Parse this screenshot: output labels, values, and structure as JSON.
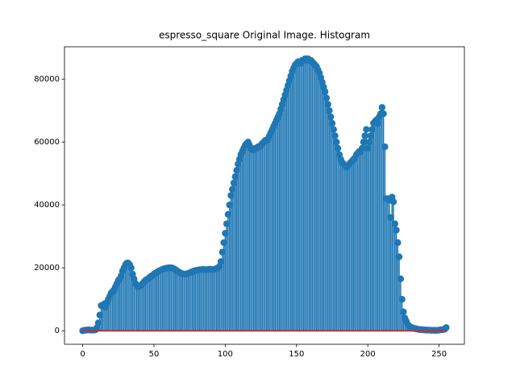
{
  "chart_data": {
    "type": "stem",
    "title": "espresso_square Original Image. Histogram",
    "x": [
      0,
      1,
      2,
      3,
      4,
      5,
      6,
      7,
      8,
      9,
      10,
      11,
      12,
      13,
      14,
      15,
      16,
      17,
      18,
      19,
      20,
      21,
      22,
      23,
      24,
      25,
      26,
      27,
      28,
      29,
      30,
      31,
      32,
      33,
      34,
      35,
      36,
      37,
      38,
      39,
      40,
      41,
      42,
      43,
      44,
      45,
      46,
      47,
      48,
      49,
      50,
      51,
      52,
      53,
      54,
      55,
      56,
      57,
      58,
      59,
      60,
      61,
      62,
      63,
      64,
      65,
      66,
      67,
      68,
      69,
      70,
      71,
      72,
      73,
      74,
      75,
      76,
      77,
      78,
      79,
      80,
      81,
      82,
      83,
      84,
      85,
      86,
      87,
      88,
      89,
      90,
      91,
      92,
      93,
      94,
      95,
      96,
      97,
      98,
      99,
      100,
      101,
      102,
      103,
      104,
      105,
      106,
      107,
      108,
      109,
      110,
      111,
      112,
      113,
      114,
      115,
      116,
      117,
      118,
      119,
      120,
      121,
      122,
      123,
      124,
      125,
      126,
      127,
      128,
      129,
      130,
      131,
      132,
      133,
      134,
      135,
      136,
      137,
      138,
      139,
      140,
      141,
      142,
      143,
      144,
      145,
      146,
      147,
      148,
      149,
      150,
      151,
      152,
      153,
      154,
      155,
      156,
      157,
      158,
      159,
      160,
      161,
      162,
      163,
      164,
      165,
      166,
      167,
      168,
      169,
      170,
      171,
      172,
      173,
      174,
      175,
      176,
      177,
      178,
      179,
      180,
      181,
      182,
      183,
      184,
      185,
      186,
      187,
      188,
      189,
      190,
      191,
      192,
      193,
      194,
      195,
      196,
      197,
      198,
      199,
      200,
      201,
      202,
      203,
      204,
      205,
      206,
      207,
      208,
      209,
      210,
      211,
      212,
      213,
      214,
      215,
      216,
      217,
      218,
      219,
      220,
      221,
      222,
      223,
      224,
      225,
      226,
      227,
      228,
      229,
      230,
      231,
      232,
      233,
      234,
      235,
      236,
      237,
      238,
      239,
      240,
      241,
      242,
      243,
      244,
      245,
      246,
      247,
      248,
      249,
      250,
      251,
      252,
      253,
      254,
      255
    ],
    "values": [
      0,
      100,
      200,
      200,
      300,
      200,
      200,
      200,
      200,
      300,
      1000,
      2500,
      5000,
      8000,
      8000,
      8500,
      7500,
      9000,
      10000,
      11000,
      12000,
      12500,
      13000,
      14000,
      15000,
      16000,
      16500,
      17500,
      19000,
      20000,
      21000,
      21500,
      21500,
      21000,
      20000,
      18000,
      16500,
      15000,
      14500,
      14000,
      14200,
      14500,
      15000,
      15500,
      16000,
      16300,
      16600,
      17000,
      17300,
      17600,
      18000,
      18300,
      18600,
      18900,
      19100,
      19300,
      19500,
      19700,
      19800,
      19900,
      20000,
      20000,
      20000,
      19900,
      19700,
      19400,
      19100,
      18800,
      18500,
      18300,
      18100,
      18000,
      18000,
      18100,
      18200,
      18400,
      18600,
      18800,
      19000,
      19100,
      19200,
      19300,
      19400,
      19400,
      19500,
      19500,
      19400,
      19400,
      19500,
      19600,
      19500,
      19400,
      19500,
      19600,
      19800,
      20000,
      20500,
      22000,
      25000,
      28000,
      31000,
      34000,
      37000,
      40000,
      43000,
      45000,
      47000,
      49000,
      51000,
      53000,
      54500,
      56000,
      57000,
      58000,
      59000,
      59500,
      60000,
      59000,
      58000,
      57500,
      57500,
      58000,
      58000,
      58500,
      58500,
      59000,
      59500,
      60000,
      60500,
      60500,
      61000,
      62000,
      63000,
      64000,
      65000,
      66000,
      67000,
      68000,
      69000,
      70500,
      72000,
      73500,
      75000,
      76500,
      78000,
      79500,
      81000,
      82500,
      83500,
      84500,
      85000,
      85500,
      85500,
      85000,
      86000,
      86000,
      86500,
      86000,
      86500,
      86000,
      86000,
      85500,
      85000,
      84500,
      84000,
      83000,
      82000,
      80500,
      79000,
      77500,
      76000,
      74000,
      72000,
      70000,
      68000,
      66000,
      64000,
      62000,
      60000,
      58000,
      56000,
      54500,
      53500,
      53000,
      52500,
      52000,
      52500,
      53000,
      53500,
      54000,
      54500,
      55000,
      56000,
      56500,
      57000,
      57000,
      58000,
      60000,
      62000,
      64000,
      58000,
      60000,
      62000,
      64000,
      66000,
      66500,
      67000,
      66000,
      68000,
      69000,
      71000,
      69000,
      58500,
      42000,
      42000,
      41500,
      36000,
      42500,
      41000,
      34000,
      32000,
      28000,
      23500,
      16500,
      10000,
      6000,
      4000,
      3000,
      2000,
      1500,
      1200,
      1000,
      800,
      700,
      600,
      500,
      400,
      400,
      300,
      300,
      250,
      200,
      200,
      200,
      150,
      150,
      150,
      100,
      100,
      150,
      200,
      300,
      300,
      400,
      500,
      1000
    ],
    "color": "#1f77b4",
    "baseline_color": "#d62728",
    "xlim": [
      -12.75,
      267.75
    ],
    "xticks": [
      0,
      50,
      100,
      150,
      200,
      250
    ],
    "ylim": [
      -4300,
      90300
    ],
    "yticks": [
      0,
      20000,
      40000,
      60000,
      80000
    ]
  }
}
